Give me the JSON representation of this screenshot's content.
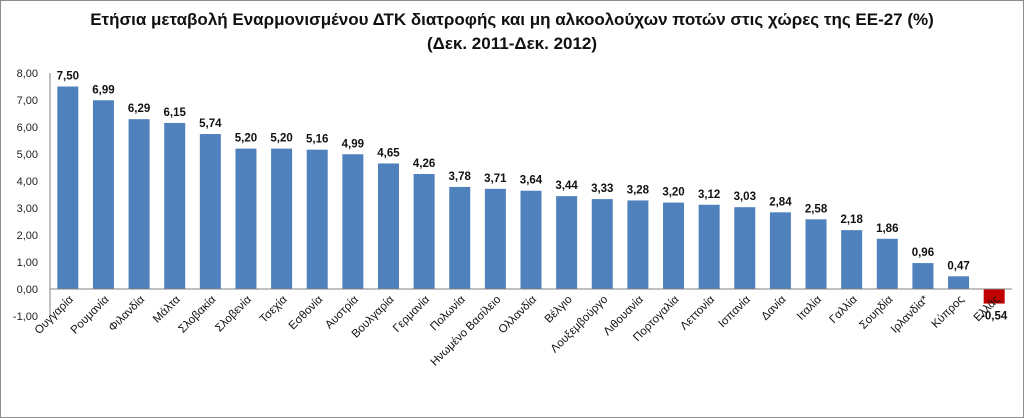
{
  "chart_data": {
    "type": "bar",
    "title_line1": "Ετήσια μεταβολή Εναρμονισμένου ΔΤΚ διατροφής και μη αλκοολούχων ποτών στις χώρες της ΕΕ-27 (%)",
    "title_line2": "(Δεκ. 2011-Δεκ. 2012)",
    "xlabel": "",
    "ylabel": "",
    "ylim": [
      -1,
      8
    ],
    "yticks": [
      "-1,00",
      "0,00",
      "1,00",
      "2,00",
      "3,00",
      "4,00",
      "5,00",
      "6,00",
      "7,00",
      "8,00"
    ],
    "grid": false,
    "legend": "none",
    "categories": [
      "Ουγγαρία",
      "Ρουμανία",
      "Φιλανδία",
      "Μάλτα",
      "Σλοβακία",
      "Σλοβενία",
      "Τσεχία",
      "Εσθονία",
      "Αυστρία",
      "Βουλγαρία",
      "Γερμανία",
      "Πολωνία",
      "Ηνωμένο Βασίλειο",
      "Ολλανδία",
      "Βέλγιο",
      "Λουξεμβούργο",
      "Λιθουανία",
      "Πορτογαλία",
      "Λεττονία",
      "Ισπανία",
      "Δανία",
      "Ιταλία",
      "Γαλλία",
      "Σουηδία",
      "Ιρλανδία*",
      "Κύπρος",
      "Ελλάς"
    ],
    "values": [
      7.5,
      6.99,
      6.29,
      6.15,
      5.74,
      5.2,
      5.2,
      5.16,
      4.99,
      4.65,
      4.26,
      3.78,
      3.71,
      3.64,
      3.44,
      3.33,
      3.28,
      3.2,
      3.12,
      3.03,
      2.84,
      2.58,
      2.18,
      1.86,
      0.96,
      0.47,
      -0.54
    ],
    "value_labels": [
      "7,50",
      "6,99",
      "6,29",
      "6,15",
      "5,74",
      "5,20",
      "5,20",
      "5,16",
      "4,99",
      "4,65",
      "4,26",
      "3,78",
      "3,71",
      "3,64",
      "3,44",
      "3,33",
      "3,28",
      "3,20",
      "3,12",
      "3,03",
      "2,84",
      "2,58",
      "2,18",
      "1,86",
      "0,96",
      "0,47",
      "-0,54"
    ],
    "colors": {
      "positive": "#4f81bd",
      "negative": "#c00000",
      "axis": "#808080"
    }
  }
}
